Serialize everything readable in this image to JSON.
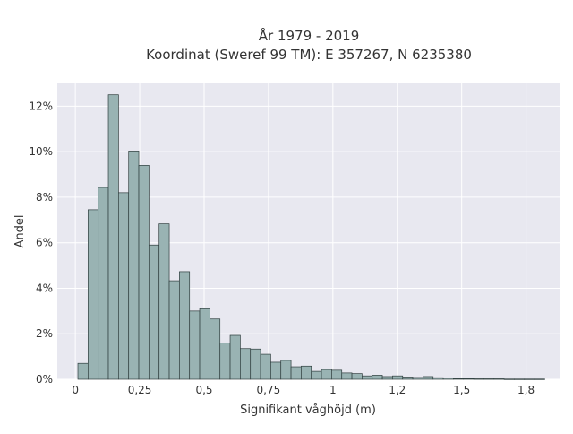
{
  "chart_data": {
    "type": "bar",
    "title_line1": "År 1979 - 2019",
    "title_line2": "Koordinat (Sweref 99 TM): E 357267, N 6235380",
    "xlabel": "Signifikant våghöjd (m)",
    "ylabel": "Andel",
    "xlim": [
      -0.07,
      1.88
    ],
    "ylim": [
      0,
      0.13
    ],
    "grid": true,
    "bar_color": "#99b3b3",
    "bar_edge_color": "#2f3e3e",
    "plot_background": "#e8e8f0",
    "x_ticks": [
      {
        "value": 0,
        "label": "0"
      },
      {
        "value": 0.25,
        "label": "0,25"
      },
      {
        "value": 0.5,
        "label": "0,5"
      },
      {
        "value": 0.75,
        "label": "0,75"
      },
      {
        "value": 1,
        "label": "1"
      },
      {
        "value": 1.25,
        "label": "1,2"
      },
      {
        "value": 1.5,
        "label": "1,5"
      },
      {
        "value": 1.75,
        "label": "1,8"
      }
    ],
    "y_ticks": [
      {
        "value": 0,
        "label": "0%"
      },
      {
        "value": 0.02,
        "label": "2%"
      },
      {
        "value": 0.04,
        "label": "4%"
      },
      {
        "value": 0.06,
        "label": "6%"
      },
      {
        "value": 0.08,
        "label": "8%"
      },
      {
        "value": 0.1,
        "label": "10%"
      },
      {
        "value": 0.12,
        "label": "12%"
      }
    ],
    "bins": {
      "start": 0.01,
      "width": 0.0394,
      "values": [
        0.007,
        0.0745,
        0.0843,
        0.125,
        0.082,
        0.1003,
        0.094,
        0.059,
        0.0683,
        0.0433,
        0.0473,
        0.03,
        0.031,
        0.0265,
        0.016,
        0.0193,
        0.0135,
        0.0133,
        0.011,
        0.0075,
        0.0083,
        0.0055,
        0.0058,
        0.0035,
        0.0043,
        0.004,
        0.0028,
        0.0025,
        0.0015,
        0.0018,
        0.0012,
        0.0015,
        0.001,
        0.0008,
        0.0012,
        0.0007,
        0.0005,
        0.0003,
        0.0003,
        0.0002,
        0.0002,
        0.0002,
        0.0001,
        0.0001,
        0.0001,
        0.0001,
        0,
        0,
        0,
        0,
        0,
        0,
        0.0002
      ]
    }
  }
}
